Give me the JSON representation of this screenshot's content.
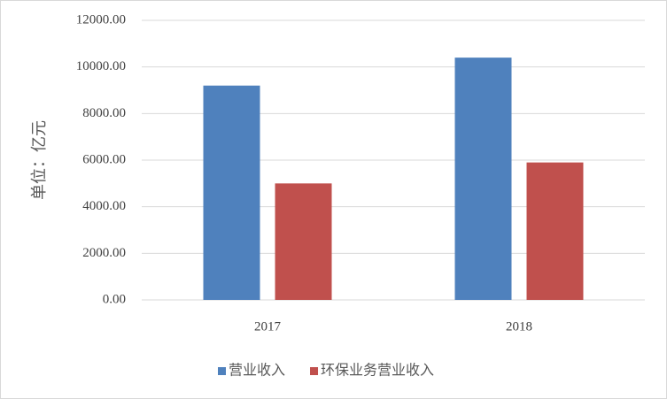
{
  "chart_data": {
    "type": "bar",
    "y_label": "单位：亿元",
    "categories": [
      "2017",
      "2018"
    ],
    "series": [
      {
        "name": "营业收入",
        "color": "#4f81bd",
        "values": [
          9200,
          10400
        ]
      },
      {
        "name": "环保业务营业收入",
        "color": "#c0504d",
        "values": [
          5000,
          5900
        ]
      }
    ],
    "ylim": [
      0,
      12000
    ],
    "yticks": [
      {
        "value": 0,
        "label": "0.00"
      },
      {
        "value": 2000,
        "label": "2000.00"
      },
      {
        "value": 4000,
        "label": "4000.00"
      },
      {
        "value": 6000,
        "label": "6000.00"
      },
      {
        "value": 8000,
        "label": "8000.00"
      },
      {
        "value": 10000,
        "label": "10000.00"
      },
      {
        "value": 12000,
        "label": "12000.00"
      }
    ],
    "grid": true,
    "legend": "bottom"
  }
}
